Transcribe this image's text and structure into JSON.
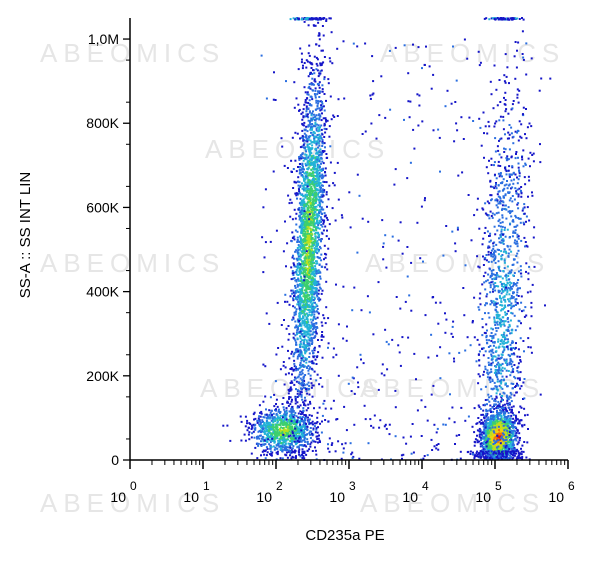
{
  "chart_data": {
    "type": "scatter",
    "subtype": "flow-cytometry-density-dot-plot",
    "xlabel": "CD235a PE",
    "ylabel": "SS-A :: SS INT LIN",
    "x_scale": "log",
    "xlim": [
      1,
      1000000
    ],
    "x_ticks": [
      {
        "base": "10",
        "exp": "0"
      },
      {
        "base": "10",
        "exp": "1"
      },
      {
        "base": "10",
        "exp": "2"
      },
      {
        "base": "10",
        "exp": "3"
      },
      {
        "base": "10",
        "exp": "4"
      },
      {
        "base": "10",
        "exp": "5"
      },
      {
        "base": "10",
        "exp": "6"
      }
    ],
    "y_scale": "linear",
    "ylim": [
      0,
      1050000
    ],
    "y_ticks": [
      {
        "value": 0,
        "label": "0"
      },
      {
        "value": 200000,
        "label": "200K"
      },
      {
        "value": 400000,
        "label": "400K"
      },
      {
        "value": 600000,
        "label": "600K"
      },
      {
        "value": 800000,
        "label": "800K"
      },
      {
        "value": 1000000,
        "label": "1,0M"
      }
    ],
    "density_colors": [
      "#1515c8",
      "#2a6ee0",
      "#22b2d8",
      "#3ccf6e",
      "#b8e020",
      "#f0d010",
      "#f07010",
      "#e01010"
    ],
    "populations": [
      {
        "x_log_center": 2.1,
        "x_log_sd": 0.22,
        "y_center": 70000,
        "y_sd": 28000,
        "count": 900,
        "peak_level": 4
      },
      {
        "x_log_center": 2.45,
        "x_log_sd": 0.1,
        "y_center": 520000,
        "y_sd": 200000,
        "count": 2600,
        "peak_level": 4
      },
      {
        "x_log_center": 5.05,
        "x_log_sd": 0.12,
        "y_center": 55000,
        "y_sd": 30000,
        "count": 1500,
        "peak_level": 7
      },
      {
        "x_log_center": 5.1,
        "x_log_sd": 0.16,
        "y_center": 360000,
        "y_sd": 260000,
        "count": 1300,
        "peak_level": 2
      }
    ],
    "watermark": "ABEOMICS"
  }
}
